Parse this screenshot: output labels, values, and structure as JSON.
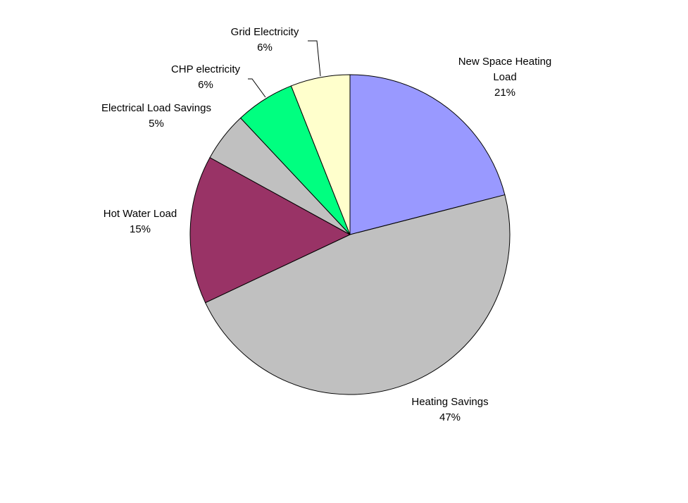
{
  "chart_data": {
    "type": "pie",
    "categories": [
      "New Space Heating Load",
      "Heating Savings",
      "Hot Water Load",
      "Electrical Load Savings",
      "CHP electricity",
      "Grid Electricity"
    ],
    "values": [
      21,
      47,
      15,
      5,
      6,
      6
    ],
    "value_labels": [
      "21%",
      "47%",
      "15%",
      "5%",
      "6%",
      "6%"
    ],
    "colors": [
      "#9999ff",
      "#c0c0c0",
      "#993366",
      "#c0c0c0",
      "#00ff80",
      "#ffffcc"
    ]
  }
}
